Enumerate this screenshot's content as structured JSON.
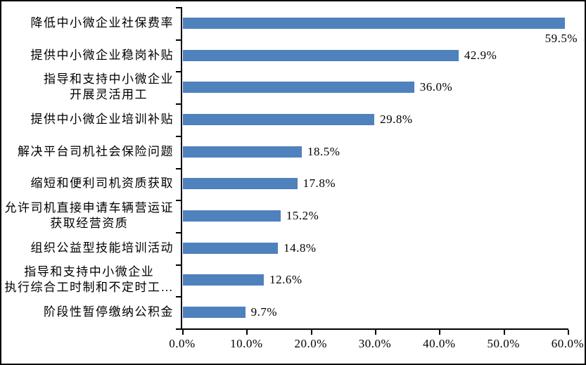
{
  "window": {
    "background_color": "#ffffff",
    "border_color": "#000000"
  },
  "chart_data": {
    "type": "bar",
    "orientation": "horizontal",
    "title": "",
    "xlabel": "",
    "ylabel": "",
    "xlim": [
      0,
      60
    ],
    "grid": "off",
    "legend": "none",
    "bar_color": "#4f81bd",
    "axis_color": "#000000",
    "text_color": "#000000",
    "data_label_position": "outside-end",
    "categories": [
      "降低中小微企业社保费率",
      "提供中小微企业稳岗补贴",
      "指导和支持中小微企业\n开展灵活用工",
      "提供中小微企业培训补贴",
      "解决平台司机社会保险问题",
      "缩短和便利司机资质获取",
      "允许司机直接申请车辆营运证\n获取经营资质",
      "组织公益型技能培训活动",
      "指导和支持中小微企业\n执行综合工时制和不定时工…",
      "阶段性暂停缴纳公积金"
    ],
    "values": [
      59.5,
      42.9,
      36.0,
      29.8,
      18.5,
      17.8,
      15.2,
      14.8,
      12.6,
      9.7
    ],
    "value_labels": [
      "59.5%",
      "42.9%",
      "36.0%",
      "29.8%",
      "18.5%",
      "17.8%",
      "15.2%",
      "14.8%",
      "12.6%",
      "9.7%"
    ],
    "x_ticks": {
      "values": [
        0,
        10,
        20,
        30,
        40,
        50,
        60
      ],
      "labels": [
        "0.0%",
        "10.0%",
        "20.0%",
        "30.0%",
        "40.0%",
        "50.0%",
        "60.0%"
      ]
    }
  }
}
